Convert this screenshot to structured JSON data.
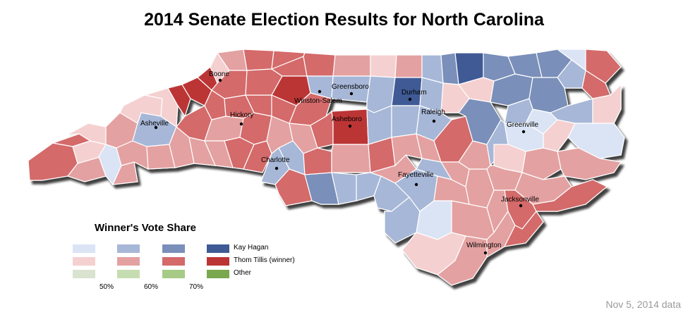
{
  "title": "2014 Senate Election Results for North Carolina",
  "footnote": "Nov 5, 2014 data",
  "legend": {
    "title": "Winner's Vote Share",
    "rows": [
      {
        "label": "Kay Hagan",
        "colors": [
          "#dbe4f5",
          "#a7b7d7",
          "#7a8fb9",
          "#3f5a95"
        ]
      },
      {
        "label": "Thom Tillis  (winner)",
        "colors": [
          "#f5d0d0",
          "#e4a1a1",
          "#d46a6a",
          "#bc3535"
        ]
      },
      {
        "label": "Other",
        "colors": [
          "#d9e3d0",
          "#c5ddb0",
          "#a7cb86",
          "#7aa84f"
        ]
      }
    ],
    "thresholds": [
      "50%",
      "60%",
      "70%"
    ]
  },
  "cities": [
    {
      "name": "Boone"
    },
    {
      "name": "Greensboro"
    },
    {
      "name": "Durham"
    },
    {
      "name": "Winston-Salem"
    },
    {
      "name": "Hickory"
    },
    {
      "name": "Raleigh"
    },
    {
      "name": "Asheville"
    },
    {
      "name": "Asheboro"
    },
    {
      "name": "Greenville"
    },
    {
      "name": "Charlotte"
    },
    {
      "name": "Fayetteville"
    },
    {
      "name": "Jacksonville"
    },
    {
      "name": "Wilmington"
    }
  ]
}
